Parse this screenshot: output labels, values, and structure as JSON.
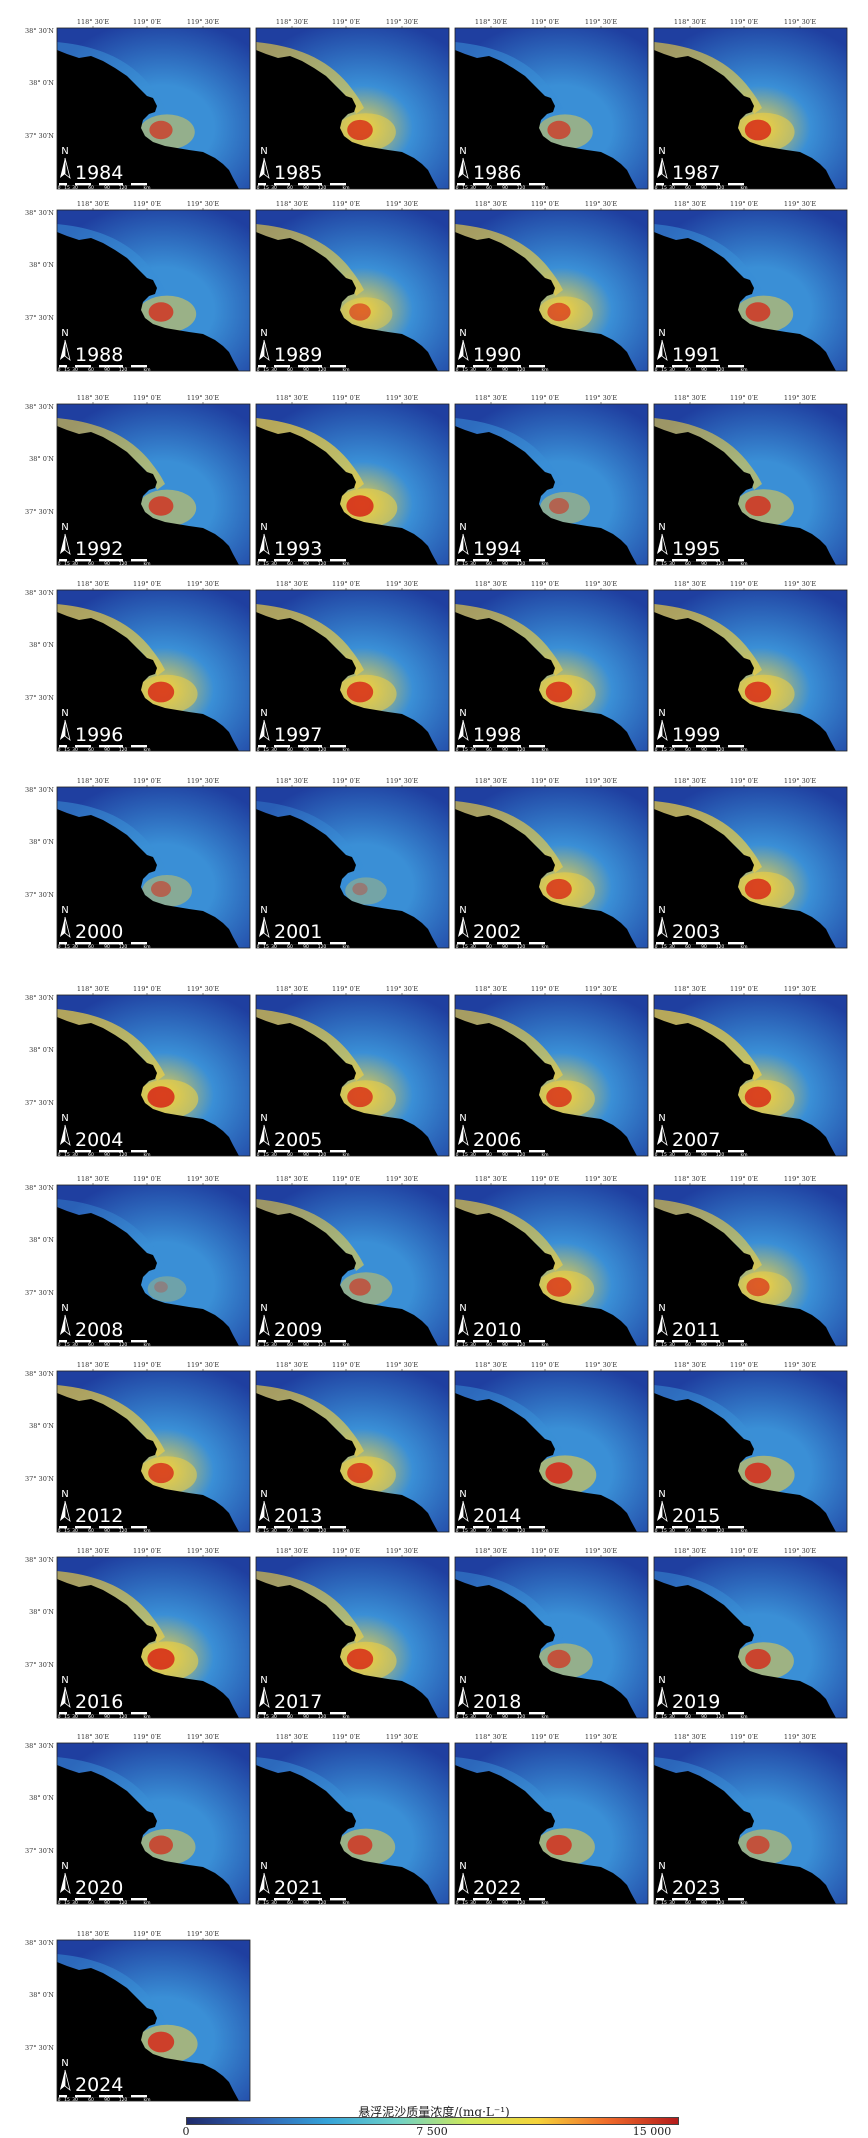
{
  "top_lon_labels": [
    "118° 30′E",
    "119° 0′E",
    "119° 30′E"
  ],
  "left_lat_labels": [
    "38° 30′N",
    "38° 0′N",
    "37° 30′N"
  ],
  "north_label": "N",
  "scalebar_labels": [
    "0",
    "15",
    "30",
    "60",
    "90",
    "120",
    "km"
  ],
  "maps": [
    {
      "year": "1984",
      "intensity": 0.4,
      "river_plume": 0.7
    },
    {
      "year": "1985",
      "intensity": 0.55,
      "river_plume": 0.85
    },
    {
      "year": "1986",
      "intensity": 0.45,
      "river_plume": 0.7
    },
    {
      "year": "1987",
      "intensity": 0.55,
      "river_plume": 0.9
    },
    {
      "year": "1988",
      "intensity": 0.45,
      "river_plume": 0.8
    },
    {
      "year": "1989",
      "intensity": 0.55,
      "river_plume": 0.6
    },
    {
      "year": "1990",
      "intensity": 0.6,
      "river_plume": 0.7
    },
    {
      "year": "1991",
      "intensity": 0.45,
      "river_plume": 0.8
    },
    {
      "year": "1992",
      "intensity": 0.5,
      "river_plume": 0.8
    },
    {
      "year": "1993",
      "intensity": 0.75,
      "river_plume": 0.95
    },
    {
      "year": "1994",
      "intensity": 0.45,
      "river_plume": 0.5
    },
    {
      "year": "1995",
      "intensity": 0.5,
      "river_plume": 0.85
    },
    {
      "year": "1996",
      "intensity": 0.65,
      "river_plume": 0.9
    },
    {
      "year": "1997",
      "intensity": 0.65,
      "river_plume": 0.9
    },
    {
      "year": "1998",
      "intensity": 0.6,
      "river_plume": 0.9
    },
    {
      "year": "1999",
      "intensity": 0.65,
      "river_plume": 0.9
    },
    {
      "year": "2000",
      "intensity": 0.4,
      "river_plume": 0.5
    },
    {
      "year": "2001",
      "intensity": 0.1,
      "river_plume": 0.2
    },
    {
      "year": "2002",
      "intensity": 0.6,
      "river_plume": 0.85
    },
    {
      "year": "2003",
      "intensity": 0.7,
      "river_plume": 0.9
    },
    {
      "year": "2004",
      "intensity": 0.7,
      "river_plume": 0.95
    },
    {
      "year": "2005",
      "intensity": 0.65,
      "river_plume": 0.85
    },
    {
      "year": "2006",
      "intensity": 0.6,
      "river_plume": 0.85
    },
    {
      "year": "2007",
      "intensity": 0.75,
      "river_plume": 0.9
    },
    {
      "year": "2008",
      "intensity": 0.12,
      "river_plume": 0.1
    },
    {
      "year": "2009",
      "intensity": 0.5,
      "river_plume": 0.6
    },
    {
      "year": "2010",
      "intensity": 0.6,
      "river_plume": 0.8
    },
    {
      "year": "2011",
      "intensity": 0.55,
      "river_plume": 0.7
    },
    {
      "year": "2012",
      "intensity": 0.65,
      "river_plume": 0.85
    },
    {
      "year": "2013",
      "intensity": 0.6,
      "river_plume": 0.85
    },
    {
      "year": "2014",
      "intensity": 0.35,
      "river_plume": 0.95
    },
    {
      "year": "2015",
      "intensity": 0.4,
      "river_plume": 0.9
    },
    {
      "year": "2016",
      "intensity": 0.6,
      "river_plume": 0.95
    },
    {
      "year": "2017",
      "intensity": 0.55,
      "river_plume": 0.9
    },
    {
      "year": "2018",
      "intensity": 0.3,
      "river_plume": 0.7
    },
    {
      "year": "2019",
      "intensity": 0.35,
      "river_plume": 0.85
    },
    {
      "year": "2020",
      "intensity": 0.3,
      "river_plume": 0.75
    },
    {
      "year": "2021",
      "intensity": 0.35,
      "river_plume": 0.8
    },
    {
      "year": "2022",
      "intensity": 0.3,
      "river_plume": 0.85
    },
    {
      "year": "2023",
      "intensity": 0.28,
      "river_plume": 0.7
    },
    {
      "year": "2024",
      "intensity": 0.35,
      "river_plume": 0.9
    }
  ],
  "legend": {
    "title": "悬浮泥沙质量浓度/(mg·L⁻¹)",
    "labels": [
      "0",
      "7 500",
      "15 000"
    ],
    "colors": [
      "#1f2b6b",
      "#2f5fb3",
      "#35a3d8",
      "#6fd1c8",
      "#cde85a",
      "#f5d33a",
      "#ef6a2a",
      "#b51c1c"
    ]
  },
  "colors": {
    "land": "#000000",
    "water_low": "#1f3fa0",
    "water_mid": "#3a8fd6",
    "water_high": "#f0d040",
    "water_max": "#d62818"
  }
}
